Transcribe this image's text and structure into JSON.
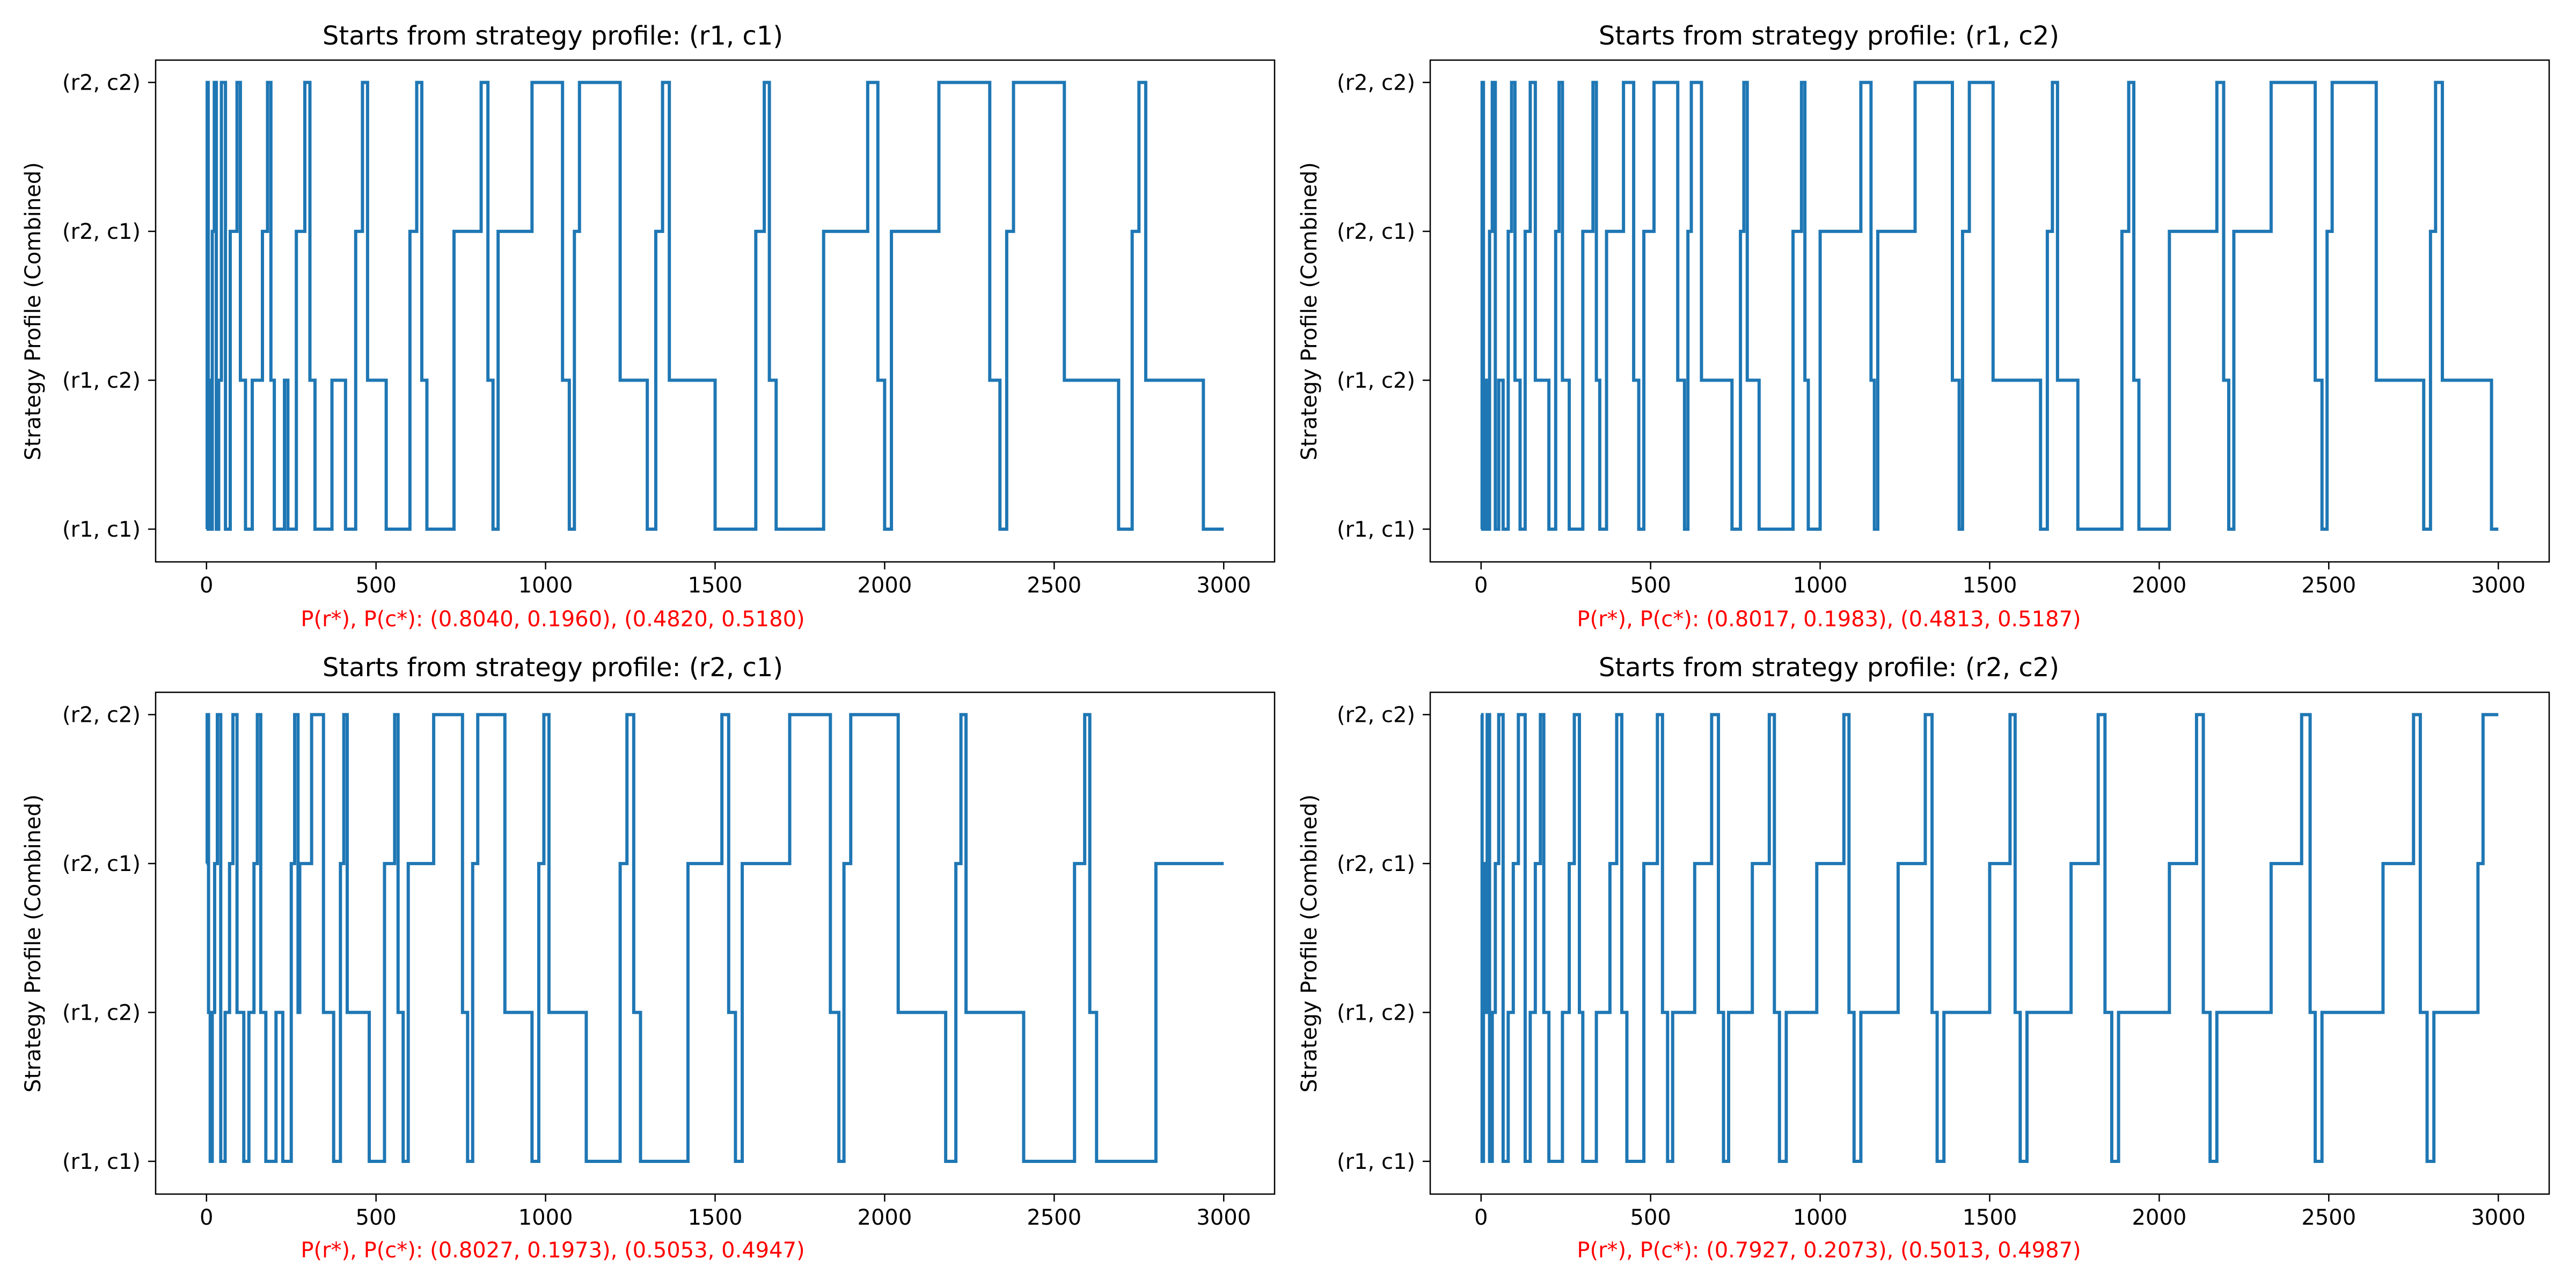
{
  "chart_data": [
    {
      "type": "line",
      "step": true,
      "title": "Starts from strategy profile: (r1, c1)",
      "xlabel": "P(r*), P(c*): (0.8040, 0.1960), (0.4820, 0.5180)",
      "ylabel": "Strategy Profile (Combined)",
      "xlim": [
        -150,
        3150
      ],
      "ylim": [
        -0.22,
        3.15
      ],
      "x_ticks": [
        "0",
        "500",
        "1000",
        "1500",
        "2000",
        "2500",
        "3000"
      ],
      "y_ticks": [
        "(r1, c1)",
        "(r1, c2)",
        "(r2, c1)",
        "(r2, c2)"
      ],
      "grid": false,
      "colors": {
        "line": "#1f77b4",
        "xlabel": "#ff0000"
      },
      "series": [
        {
          "x": [
            0,
            2,
            5,
            8,
            12,
            17,
            23,
            29,
            36,
            44,
            56,
            70,
            90,
            100,
            115,
            135,
            165,
            180,
            190,
            200,
            230,
            240,
            265,
            290,
            305,
            320,
            370,
            410,
            440,
            460,
            475,
            530,
            600,
            620,
            635,
            650,
            730,
            810,
            830,
            845,
            860,
            960,
            1050,
            1070,
            1085,
            1100,
            1220,
            1300,
            1325,
            1345,
            1365,
            1500,
            1620,
            1645,
            1660,
            1680,
            1820,
            1950,
            1980,
            2000,
            2020,
            2160,
            2310,
            2340,
            2360,
            2380,
            2530,
            2690,
            2730,
            2750,
            2770,
            2940,
            3000
          ],
          "y": [
            0,
            3,
            0,
            1,
            0,
            2,
            3,
            0,
            1,
            3,
            0,
            2,
            3,
            1,
            0,
            1,
            2,
            3,
            1,
            0,
            1,
            0,
            2,
            3,
            1,
            0,
            1,
            0,
            2,
            3,
            1,
            0,
            2,
            3,
            1,
            0,
            2,
            3,
            1,
            0,
            2,
            3,
            1,
            0,
            2,
            3,
            1,
            0,
            2,
            3,
            1,
            0,
            2,
            3,
            1,
            0,
            2,
            3,
            1,
            0,
            2,
            3,
            1,
            0,
            2,
            3,
            1,
            0,
            2,
            3,
            1,
            0,
            0
          ]
        }
      ]
    },
    {
      "type": "line",
      "step": true,
      "title": "Starts from strategy profile: (r1, c2)",
      "xlabel": "P(r*), P(c*): (0.8017, 0.1983), (0.4813, 0.5187)",
      "ylabel": "Strategy Profile (Combined)",
      "xlim": [
        -150,
        3150
      ],
      "ylim": [
        -0.22,
        3.15
      ],
      "x_ticks": [
        "0",
        "500",
        "1000",
        "1500",
        "2000",
        "2500",
        "3000"
      ],
      "y_ticks": [
        "(r1, c1)",
        "(r1, c2)",
        "(r2, c1)",
        "(r2, c2)"
      ],
      "grid": false,
      "colors": {
        "line": "#1f77b4",
        "xlabel": "#ff0000"
      },
      "series": [
        {
          "x": [
            0,
            3,
            7,
            12,
            18,
            25,
            33,
            42,
            52,
            65,
            80,
            90,
            100,
            115,
            130,
            145,
            160,
            200,
            220,
            230,
            240,
            260,
            300,
            330,
            340,
            350,
            370,
            420,
            450,
            465,
            480,
            510,
            580,
            600,
            610,
            620,
            650,
            740,
            765,
            775,
            785,
            820,
            920,
            945,
            955,
            965,
            1000,
            1120,
            1150,
            1160,
            1170,
            1280,
            1390,
            1410,
            1420,
            1440,
            1510,
            1650,
            1670,
            1685,
            1700,
            1760,
            1890,
            1910,
            1925,
            1940,
            2030,
            2170,
            2190,
            2205,
            2220,
            2330,
            2460,
            2480,
            2495,
            2510,
            2640,
            2780,
            2800,
            2815,
            2835,
            2980,
            3000
          ],
          "y": [
            0,
            3,
            0,
            1,
            0,
            2,
            3,
            0,
            1,
            0,
            2,
            3,
            1,
            0,
            2,
            3,
            1,
            0,
            2,
            3,
            1,
            0,
            2,
            3,
            1,
            0,
            2,
            3,
            1,
            0,
            2,
            3,
            1,
            0,
            2,
            3,
            1,
            0,
            2,
            3,
            1,
            0,
            2,
            3,
            1,
            0,
            2,
            3,
            1,
            0,
            2,
            3,
            1,
            0,
            2,
            3,
            1,
            0,
            2,
            3,
            1,
            0,
            2,
            3,
            1,
            0,
            2,
            3,
            1,
            0,
            2,
            3,
            1,
            0,
            2,
            3,
            1,
            0,
            2,
            3,
            1,
            0,
            0
          ]
        }
      ]
    },
    {
      "type": "line",
      "step": true,
      "title": "Starts from strategy profile: (r2, c1)",
      "xlabel": "P(r*), P(c*): (0.8027, 0.1973), (0.5053, 0.4947)",
      "ylabel": "Strategy Profile (Combined)",
      "xlim": [
        -150,
        3150
      ],
      "ylim": [
        -0.22,
        3.15
      ],
      "x_ticks": [
        "0",
        "500",
        "1000",
        "1500",
        "2000",
        "2500",
        "3000"
      ],
      "y_ticks": [
        "(r1, c1)",
        "(r1, c2)",
        "(r2, c1)",
        "(r2, c2)"
      ],
      "grid": false,
      "colors": {
        "line": "#1f77b4",
        "xlabel": "#ff0000"
      },
      "series": [
        {
          "x": [
            0,
            2,
            6,
            11,
            17,
            24,
            32,
            42,
            55,
            68,
            78,
            90,
            110,
            125,
            140,
            150,
            160,
            175,
            205,
            225,
            250,
            260,
            270,
            275,
            310,
            345,
            375,
            395,
            405,
            415,
            480,
            525,
            555,
            565,
            580,
            595,
            670,
            755,
            770,
            785,
            800,
            880,
            960,
            980,
            995,
            1010,
            1120,
            1220,
            1240,
            1260,
            1280,
            1420,
            1520,
            1540,
            1560,
            1580,
            1720,
            1840,
            1865,
            1880,
            1900,
            2040,
            2180,
            2210,
            2225,
            2240,
            2410,
            2560,
            2590,
            2605,
            2625,
            2800,
            2980,
            3000
          ],
          "y": [
            2,
            3,
            1,
            0,
            1,
            2,
            3,
            0,
            1,
            2,
            3,
            1,
            0,
            1,
            2,
            3,
            1,
            0,
            1,
            0,
            2,
            3,
            1,
            2,
            3,
            1,
            0,
            2,
            3,
            1,
            0,
            2,
            3,
            1,
            0,
            2,
            3,
            1,
            0,
            2,
            3,
            1,
            0,
            2,
            3,
            1,
            0,
            2,
            3,
            1,
            0,
            2,
            3,
            1,
            0,
            2,
            3,
            1,
            0,
            2,
            3,
            1,
            0,
            2,
            3,
            1,
            0,
            2,
            3,
            1,
            0,
            2,
            2,
            2
          ]
        }
      ]
    },
    {
      "type": "line",
      "step": true,
      "title": "Starts from strategy profile: (r2, c2)",
      "xlabel": "P(r*), P(c*): (0.7927, 0.2073), (0.5013, 0.4987)",
      "ylabel": "Strategy Profile (Combined)",
      "xlim": [
        -150,
        3150
      ],
      "ylim": [
        -0.22,
        3.15
      ],
      "x_ticks": [
        "0",
        "500",
        "1000",
        "1500",
        "2000",
        "2500",
        "3000"
      ],
      "y_ticks": [
        "(r1, c1)",
        "(r1, c2)",
        "(r2, c1)",
        "(r2, c2)"
      ],
      "grid": false,
      "colors": {
        "line": "#1f77b4",
        "xlabel": "#ff0000"
      },
      "series": [
        {
          "x": [
            0,
            3,
            7,
            12,
            18,
            25,
            33,
            42,
            52,
            65,
            80,
            95,
            110,
            130,
            145,
            160,
            175,
            185,
            200,
            240,
            260,
            275,
            290,
            300,
            340,
            380,
            400,
            415,
            430,
            480,
            520,
            535,
            550,
            565,
            630,
            680,
            700,
            715,
            730,
            800,
            850,
            865,
            880,
            900,
            990,
            1070,
            1085,
            1100,
            1120,
            1230,
            1310,
            1330,
            1345,
            1365,
            1500,
            1560,
            1575,
            1590,
            1610,
            1740,
            1820,
            1840,
            1860,
            1880,
            2030,
            2110,
            2130,
            2150,
            2170,
            2330,
            2420,
            2445,
            2460,
            2480,
            2660,
            2750,
            2770,
            2790,
            2810,
            2940,
            2955,
            2975,
            3000
          ],
          "y": [
            3,
            0,
            2,
            1,
            3,
            0,
            1,
            2,
            3,
            0,
            1,
            2,
            3,
            0,
            1,
            2,
            3,
            1,
            0,
            1,
            2,
            3,
            1,
            0,
            1,
            2,
            3,
            1,
            0,
            2,
            3,
            1,
            0,
            1,
            2,
            3,
            1,
            0,
            1,
            2,
            3,
            1,
            0,
            1,
            2,
            3,
            1,
            0,
            1,
            2,
            3,
            1,
            0,
            1,
            2,
            3,
            1,
            0,
            1,
            2,
            3,
            1,
            0,
            1,
            2,
            3,
            1,
            0,
            1,
            2,
            3,
            1,
            0,
            1,
            2,
            3,
            1,
            0,
            1,
            2,
            3,
            3,
            3
          ]
        }
      ]
    }
  ]
}
